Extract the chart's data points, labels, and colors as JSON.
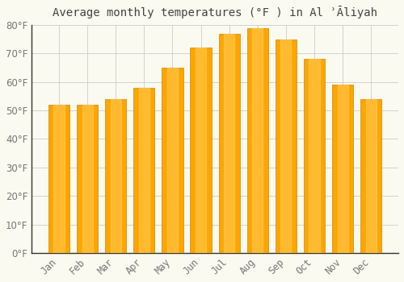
{
  "title": "Average monthly temperatures (°F ) in Al ʾĀliyah",
  "months": [
    "Jan",
    "Feb",
    "Mar",
    "Apr",
    "May",
    "Jun",
    "Jul",
    "Aug",
    "Sep",
    "Oct",
    "Nov",
    "Dec"
  ],
  "values": [
    52,
    52,
    54,
    58,
    65,
    72,
    77,
    79,
    75,
    68,
    59,
    54
  ],
  "bar_color": "#FFA500",
  "bar_edge_color": "#CC8800",
  "background_color": "#FAFAF0",
  "grid_color": "#CCCCCC",
  "text_color": "#777777",
  "axis_color": "#333333",
  "ylim": [
    0,
    80
  ],
  "yticks": [
    0,
    10,
    20,
    30,
    40,
    50,
    60,
    70,
    80
  ],
  "title_fontsize": 10,
  "tick_fontsize": 8.5
}
